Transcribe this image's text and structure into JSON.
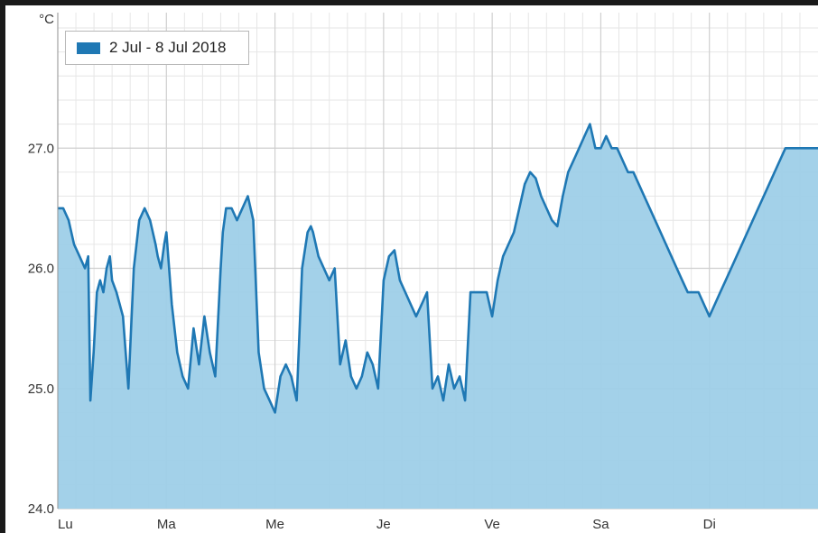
{
  "chart_data": {
    "type": "area",
    "title": "",
    "xlabel": "",
    "ylabel": "°C",
    "ylim": [
      24.0,
      28.0
    ],
    "yticks": [
      "24.0",
      "25.0",
      "26.0",
      "27.0"
    ],
    "xlim": [
      0,
      7
    ],
    "xtick_labels": [
      "Lu",
      "Ma",
      "Me",
      "Je",
      "Ve",
      "Sa",
      "Di"
    ],
    "grid": true,
    "legend_position": "top-left",
    "colors": {
      "line": "#1f78b4",
      "fill": "#9ecfe8",
      "grid": "#dddddd",
      "frame": "#1a1a1a"
    },
    "series": [
      {
        "name": "2 Jul - 8 Jul 2018",
        "x": [
          0.0,
          0.05,
          0.1,
          0.15,
          0.2,
          0.25,
          0.28,
          0.3,
          0.33,
          0.36,
          0.39,
          0.42,
          0.45,
          0.48,
          0.5,
          0.54,
          0.6,
          0.65,
          0.7,
          0.75,
          0.8,
          0.85,
          0.9,
          0.92,
          0.95,
          0.98,
          1.0,
          1.05,
          1.1,
          1.15,
          1.2,
          1.25,
          1.3,
          1.35,
          1.4,
          1.45,
          1.5,
          1.52,
          1.55,
          1.6,
          1.65,
          1.7,
          1.75,
          1.8,
          1.85,
          1.9,
          1.95,
          2.0,
          2.05,
          2.1,
          2.15,
          2.2,
          2.25,
          2.3,
          2.33,
          2.35,
          2.4,
          2.45,
          2.5,
          2.55,
          2.6,
          2.65,
          2.7,
          2.75,
          2.8,
          2.85,
          2.9,
          2.95,
          3.0,
          3.05,
          3.1,
          3.15,
          3.2,
          3.25,
          3.3,
          3.35,
          3.4,
          3.45,
          3.5,
          3.55,
          3.6,
          3.65,
          3.7,
          3.75,
          3.8,
          3.85,
          3.9,
          3.95,
          4.0,
          4.05,
          4.1,
          4.15,
          4.2,
          4.25,
          4.3,
          4.35,
          4.4,
          4.45,
          4.5,
          4.55,
          4.6,
          4.65,
          4.7,
          4.75,
          4.8,
          4.85,
          4.9,
          4.95,
          5.0,
          5.05,
          5.1,
          5.15,
          5.2,
          5.25,
          5.3,
          5.35,
          5.4,
          5.45,
          5.5,
          5.55,
          5.6,
          5.65,
          5.7,
          5.75,
          5.8,
          5.85,
          5.9,
          5.95,
          6.0,
          6.05,
          6.1,
          6.15,
          6.2,
          6.25,
          6.3,
          6.35,
          6.4,
          6.45,
          6.5,
          6.55,
          6.6,
          6.65,
          6.7,
          6.75,
          6.8,
          6.85,
          6.9,
          6.95,
          7.0
        ],
        "values": [
          26.5,
          26.5,
          26.4,
          26.2,
          26.1,
          26.0,
          26.1,
          24.9,
          25.3,
          25.8,
          25.9,
          25.8,
          26.0,
          26.1,
          25.9,
          25.8,
          25.6,
          25.0,
          26.0,
          26.4,
          26.5,
          26.4,
          26.2,
          26.1,
          26.0,
          26.2,
          26.3,
          25.7,
          25.3,
          25.1,
          25.0,
          25.5,
          25.2,
          25.6,
          25.3,
          25.1,
          26.0,
          26.3,
          26.5,
          26.5,
          26.4,
          26.5,
          26.6,
          26.4,
          25.3,
          25.0,
          24.9,
          24.8,
          25.1,
          25.2,
          25.1,
          24.9,
          26.0,
          26.3,
          26.35,
          26.3,
          26.1,
          26.0,
          25.9,
          26.0,
          25.2,
          25.4,
          25.1,
          25.0,
          25.1,
          25.3,
          25.2,
          25.0,
          25.9,
          26.1,
          26.15,
          25.9,
          25.8,
          25.7,
          25.6,
          25.7,
          25.8,
          25.0,
          25.1,
          24.9,
          25.2,
          25.0,
          25.1,
          24.9,
          25.8,
          25.8,
          25.8,
          25.8,
          25.6,
          25.9,
          26.1,
          26.2,
          26.3,
          26.5,
          26.7,
          26.8,
          26.75,
          26.6,
          26.5,
          26.4,
          26.35,
          26.6,
          26.8,
          26.9,
          27.0,
          27.1,
          27.2,
          27.0,
          27.0,
          27.1,
          27.0,
          27.0,
          26.9,
          26.8,
          26.8,
          26.7,
          26.6,
          26.5,
          26.4,
          26.3,
          26.2,
          26.1,
          26.0,
          25.9,
          25.8,
          25.8,
          25.8,
          25.7,
          25.6,
          25.7,
          25.8,
          25.9,
          26.0,
          26.1,
          26.2,
          26.3,
          26.4,
          26.5,
          26.6,
          26.7,
          26.8,
          26.9,
          27.0,
          27.0,
          27.0,
          27.0,
          27.0,
          27.0,
          27.0
        ]
      }
    ]
  }
}
